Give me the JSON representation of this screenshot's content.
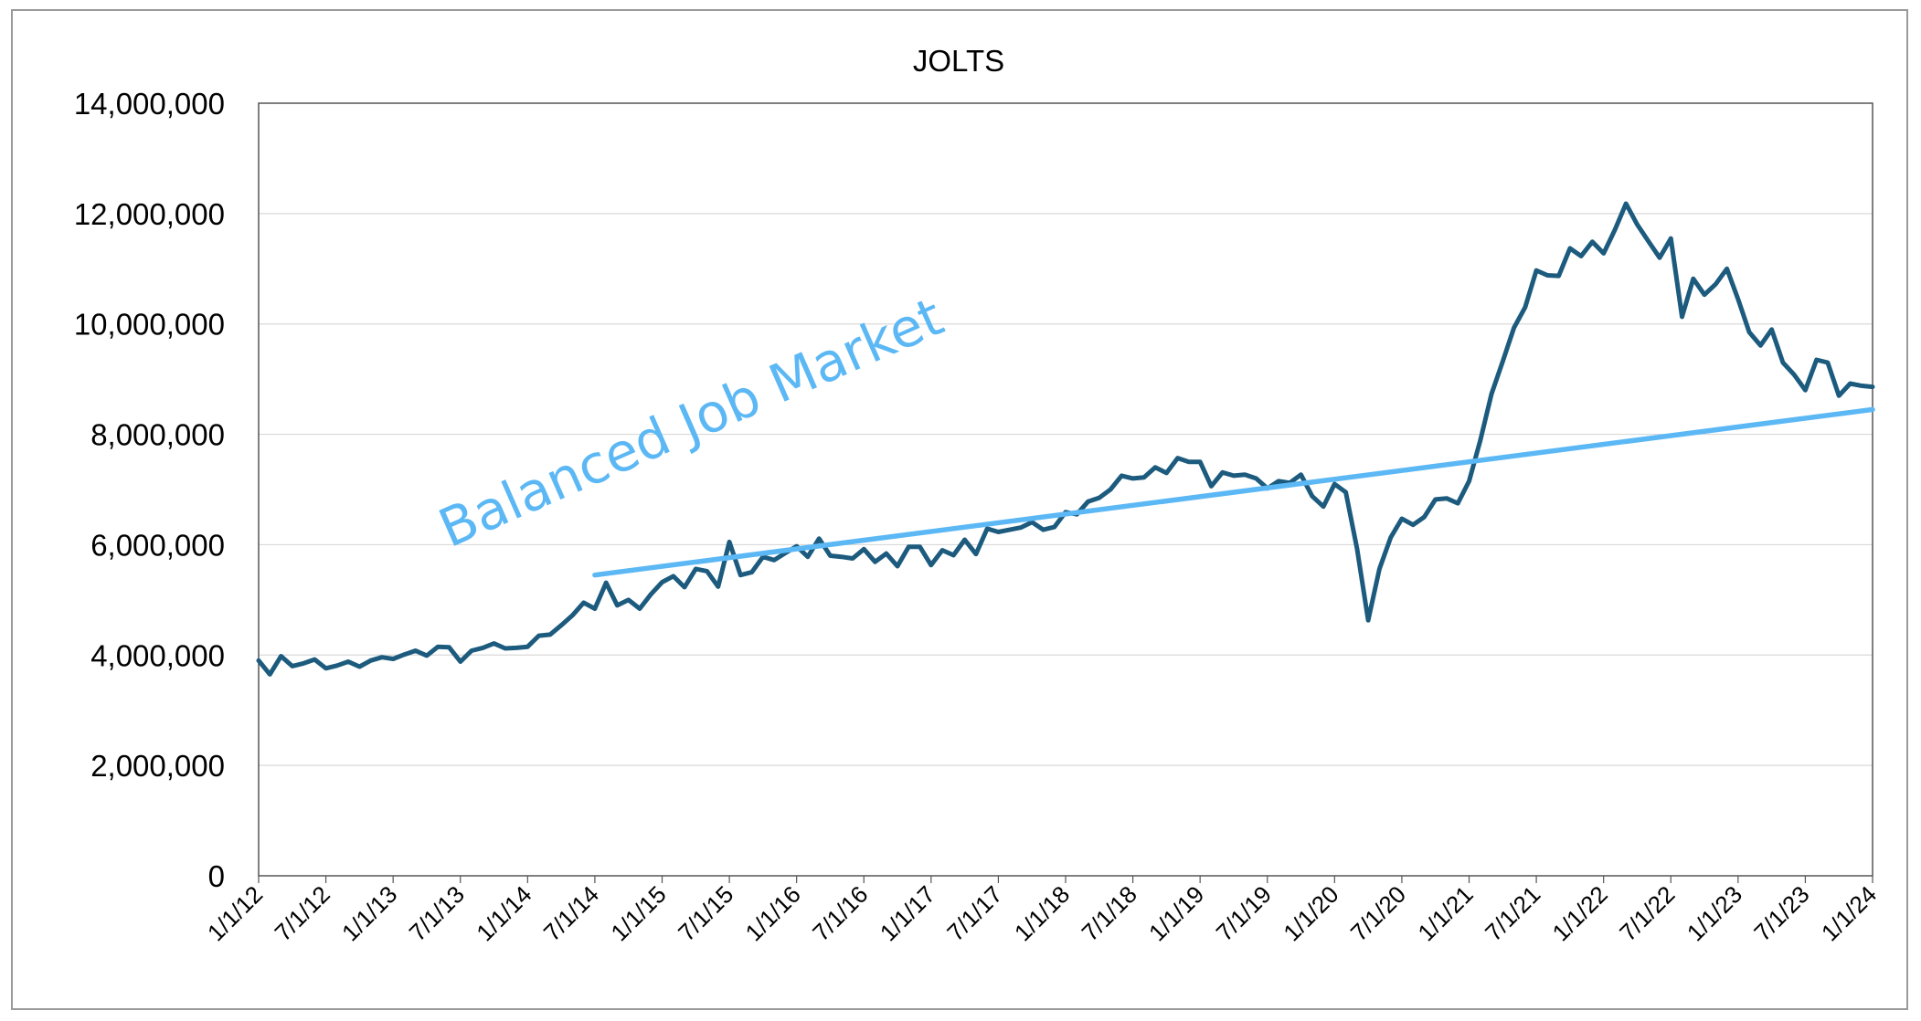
{
  "chart_data": {
    "type": "line",
    "title": "JOLTS",
    "xlabel": "",
    "ylabel": "",
    "ylim": [
      0,
      14000000
    ],
    "yticks": [
      0,
      2000000,
      4000000,
      6000000,
      8000000,
      10000000,
      12000000,
      14000000
    ],
    "ytick_labels": [
      "0",
      "2,000,000",
      "4,000,000",
      "6,000,000",
      "8,000,000",
      "10,000,000",
      "12,000,000",
      "14,000,000"
    ],
    "xlim": [
      "1/1/12",
      "1/1/24"
    ],
    "xtick_labels": [
      "1/1/12",
      "7/1/12",
      "1/1/13",
      "7/1/13",
      "1/1/14",
      "7/1/14",
      "1/1/15",
      "7/1/15",
      "1/1/16",
      "7/1/16",
      "1/1/17",
      "7/1/17",
      "1/1/18",
      "7/1/18",
      "1/1/19",
      "7/1/19",
      "1/1/20",
      "7/1/20",
      "1/1/21",
      "7/1/21",
      "1/1/22",
      "7/1/22",
      "1/1/23",
      "7/1/23",
      "1/1/24"
    ],
    "grid": true,
    "series": [
      {
        "color": "#1c5b7e",
        "x": [
          "1/1/12",
          "2/1/12",
          "3/1/12",
          "4/1/12",
          "5/1/12",
          "6/1/12",
          "7/1/12",
          "8/1/12",
          "9/1/12",
          "10/1/12",
          "11/1/12",
          "12/1/12",
          "1/1/13",
          "2/1/13",
          "3/1/13",
          "4/1/13",
          "5/1/13",
          "6/1/13",
          "7/1/13",
          "8/1/13",
          "9/1/13",
          "10/1/13",
          "11/1/13",
          "12/1/13",
          "1/1/14",
          "2/1/14",
          "3/1/14",
          "4/1/14",
          "5/1/14",
          "6/1/14",
          "7/1/14",
          "8/1/14",
          "9/1/14",
          "10/1/14",
          "11/1/14",
          "12/1/14",
          "1/1/15",
          "2/1/15",
          "3/1/15",
          "4/1/15",
          "5/1/15",
          "6/1/15",
          "7/1/15",
          "8/1/15",
          "9/1/15",
          "10/1/15",
          "11/1/15",
          "12/1/15",
          "1/1/16",
          "2/1/16",
          "3/1/16",
          "4/1/16",
          "5/1/16",
          "6/1/16",
          "7/1/16",
          "8/1/16",
          "9/1/16",
          "10/1/16",
          "11/1/16",
          "12/1/16",
          "1/1/17",
          "2/1/17",
          "3/1/17",
          "4/1/17",
          "5/1/17",
          "6/1/17",
          "7/1/17",
          "8/1/17",
          "9/1/17",
          "10/1/17",
          "11/1/17",
          "12/1/17",
          "1/1/18",
          "2/1/18",
          "3/1/18",
          "4/1/18",
          "5/1/18",
          "6/1/18",
          "7/1/18",
          "8/1/18",
          "9/1/18",
          "10/1/18",
          "11/1/18",
          "12/1/18",
          "1/1/19",
          "2/1/19",
          "3/1/19",
          "4/1/19",
          "5/1/19",
          "6/1/19",
          "7/1/19",
          "8/1/19",
          "9/1/19",
          "10/1/19",
          "11/1/19",
          "12/1/19",
          "1/1/20",
          "2/1/20",
          "3/1/20",
          "4/1/20",
          "5/1/20",
          "6/1/20",
          "7/1/20",
          "8/1/20",
          "9/1/20",
          "10/1/20",
          "11/1/20",
          "12/1/20",
          "1/1/21",
          "2/1/21",
          "3/1/21",
          "4/1/21",
          "5/1/21",
          "6/1/21",
          "7/1/21",
          "8/1/21",
          "9/1/21",
          "10/1/21",
          "11/1/21",
          "12/1/21",
          "1/1/22",
          "2/1/22",
          "3/1/22",
          "4/1/22",
          "5/1/22",
          "6/1/22",
          "7/1/22",
          "8/1/22",
          "9/1/22",
          "10/1/22",
          "11/1/22",
          "12/1/22",
          "1/1/23",
          "2/1/23",
          "3/1/23",
          "4/1/23",
          "5/1/23",
          "6/1/23",
          "7/1/23",
          "8/1/23",
          "9/1/23",
          "10/1/23",
          "11/1/23",
          "12/1/23",
          "1/1/24"
        ],
        "values": [
          3900000,
          3650000,
          3980000,
          3800000,
          3850000,
          3920000,
          3760000,
          3810000,
          3880000,
          3790000,
          3900000,
          3960000,
          3930000,
          4010000,
          4080000,
          3990000,
          4150000,
          4140000,
          3880000,
          4080000,
          4130000,
          4210000,
          4120000,
          4130000,
          4150000,
          4350000,
          4370000,
          4540000,
          4720000,
          4950000,
          4840000,
          5310000,
          4900000,
          5000000,
          4840000,
          5100000,
          5320000,
          5430000,
          5230000,
          5560000,
          5520000,
          5240000,
          6050000,
          5450000,
          5500000,
          5780000,
          5720000,
          5850000,
          5970000,
          5780000,
          6110000,
          5800000,
          5780000,
          5750000,
          5920000,
          5690000,
          5840000,
          5610000,
          5960000,
          5960000,
          5630000,
          5900000,
          5810000,
          6090000,
          5830000,
          6290000,
          6230000,
          6270000,
          6310000,
          6410000,
          6270000,
          6320000,
          6590000,
          6550000,
          6780000,
          6850000,
          7000000,
          7250000,
          7200000,
          7220000,
          7400000,
          7300000,
          7570000,
          7500000,
          7500000,
          7060000,
          7310000,
          7250000,
          7270000,
          7200000,
          7020000,
          7150000,
          7120000,
          7270000,
          6880000,
          6690000,
          7100000,
          6950000,
          5930000,
          4630000,
          5560000,
          6130000,
          6470000,
          6360000,
          6500000,
          6820000,
          6840000,
          6750000,
          7150000,
          7890000,
          8730000,
          9320000,
          9930000,
          10300000,
          10970000,
          10880000,
          10870000,
          11370000,
          11230000,
          11490000,
          11280000,
          11700000,
          12180000,
          11800000,
          11500000,
          11200000,
          11550000,
          10130000,
          10820000,
          10530000,
          10720000,
          11000000,
          10450000,
          9850000,
          9610000,
          9900000,
          9300000,
          9080000,
          8800000,
          9350000,
          9300000,
          8700000,
          8920000,
          8880000,
          8860000
        ]
      },
      {
        "color": "#5cb8f5",
        "x": [
          "7/1/14",
          "1/1/24"
        ],
        "values": [
          5450000,
          8450000
        ]
      }
    ],
    "annotations": [
      {
        "text": "Balanced Job Market",
        "color": "#5cb8f5"
      }
    ]
  }
}
